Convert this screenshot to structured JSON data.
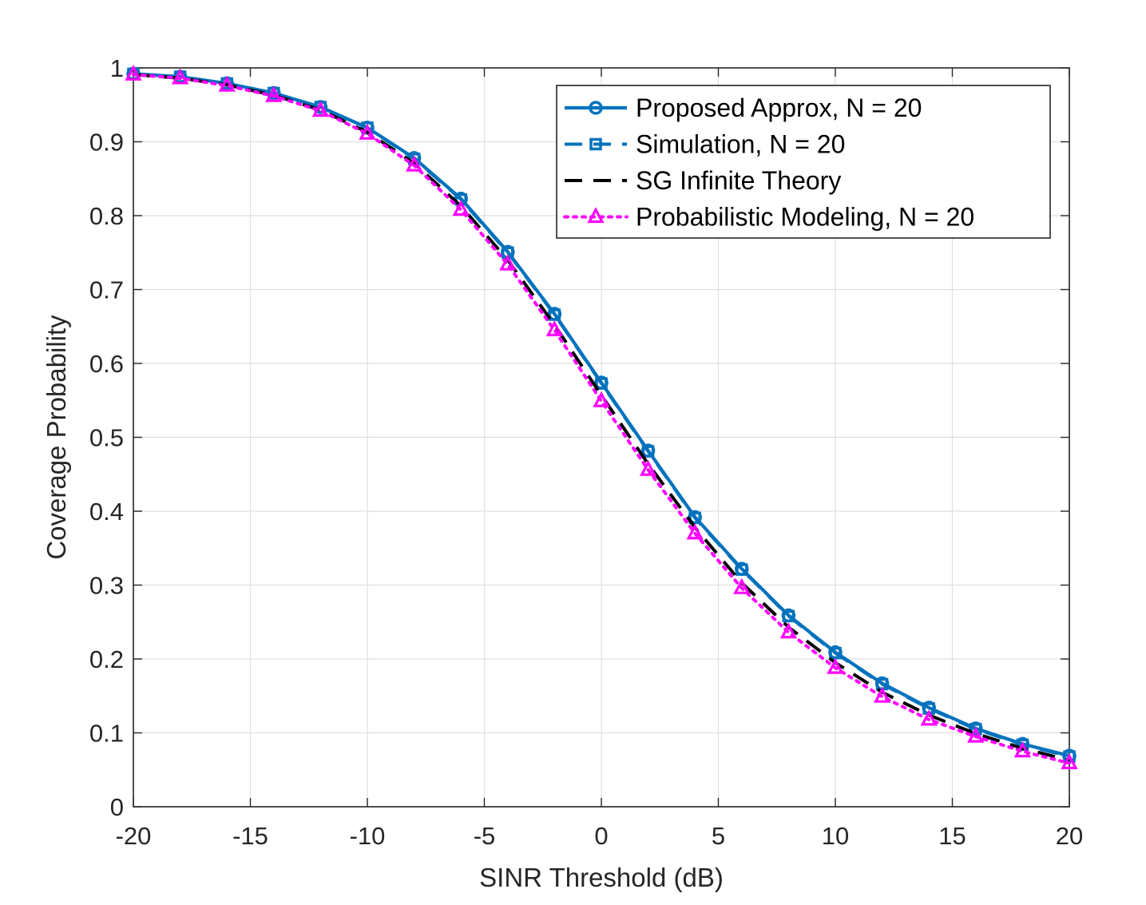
{
  "chart_data": {
    "type": "line",
    "xlabel": "SINR Threshold (dB)",
    "ylabel": "Coverage Probability",
    "xlim": [
      -20,
      20
    ],
    "ylim": [
      0,
      1
    ],
    "grid": true,
    "legend_position": "top-right",
    "x_ticks": [
      -20,
      -15,
      -10,
      -5,
      0,
      5,
      10,
      15,
      20
    ],
    "y_ticks": [
      0,
      0.1,
      0.2,
      0.3,
      0.4,
      0.5,
      0.6,
      0.7,
      0.8,
      0.9,
      1
    ],
    "x_tick_labels": [
      "-20",
      "-15",
      "-10",
      "-5",
      "0",
      "5",
      "10",
      "15",
      "20"
    ],
    "y_tick_labels": [
      "0",
      "0.1",
      "0.2",
      "0.3",
      "0.4",
      "0.5",
      "0.6",
      "0.7",
      "0.8",
      "0.9",
      "1"
    ],
    "x": [
      -20,
      -18,
      -16,
      -14,
      -12,
      -10,
      -8,
      -6,
      -4,
      -2,
      0,
      2,
      4,
      6,
      8,
      10,
      12,
      14,
      16,
      18,
      20
    ],
    "series": [
      {
        "name": "Proposed Approx, N = 20",
        "color": "#0072BD",
        "line": "solid",
        "marker": "circle",
        "values": [
          0.992,
          0.988,
          0.979,
          0.966,
          0.947,
          0.919,
          0.878,
          0.823,
          0.751,
          0.667,
          0.574,
          0.482,
          0.392,
          0.322,
          0.259,
          0.209,
          0.167,
          0.134,
          0.106,
          0.085,
          0.069
        ]
      },
      {
        "name": "Simulation, N = 20",
        "color": "#0072BD",
        "line": "dashed",
        "marker": "square",
        "values": [
          0.992,
          0.988,
          0.979,
          0.966,
          0.947,
          0.919,
          0.877,
          0.822,
          0.75,
          0.666,
          0.573,
          0.481,
          0.391,
          0.321,
          0.258,
          0.208,
          0.166,
          0.133,
          0.105,
          0.084,
          0.068
        ]
      },
      {
        "name": "SG Infinite Theory",
        "color": "#000000",
        "line": "dashed",
        "marker": "none",
        "values": [
          0.991,
          0.986,
          0.977,
          0.963,
          0.943,
          0.913,
          0.871,
          0.813,
          0.74,
          0.652,
          0.557,
          0.464,
          0.378,
          0.303,
          0.243,
          0.195,
          0.155,
          0.124,
          0.099,
          0.079,
          0.063
        ]
      },
      {
        "name": "Probabilistic Modeling, N = 20",
        "color": "#FF00FF",
        "line": "dotted",
        "marker": "triangle",
        "values": [
          0.991,
          0.986,
          0.976,
          0.962,
          0.942,
          0.911,
          0.868,
          0.808,
          0.734,
          0.645,
          0.549,
          0.456,
          0.37,
          0.296,
          0.236,
          0.188,
          0.149,
          0.118,
          0.095,
          0.075,
          0.059
        ]
      }
    ]
  }
}
